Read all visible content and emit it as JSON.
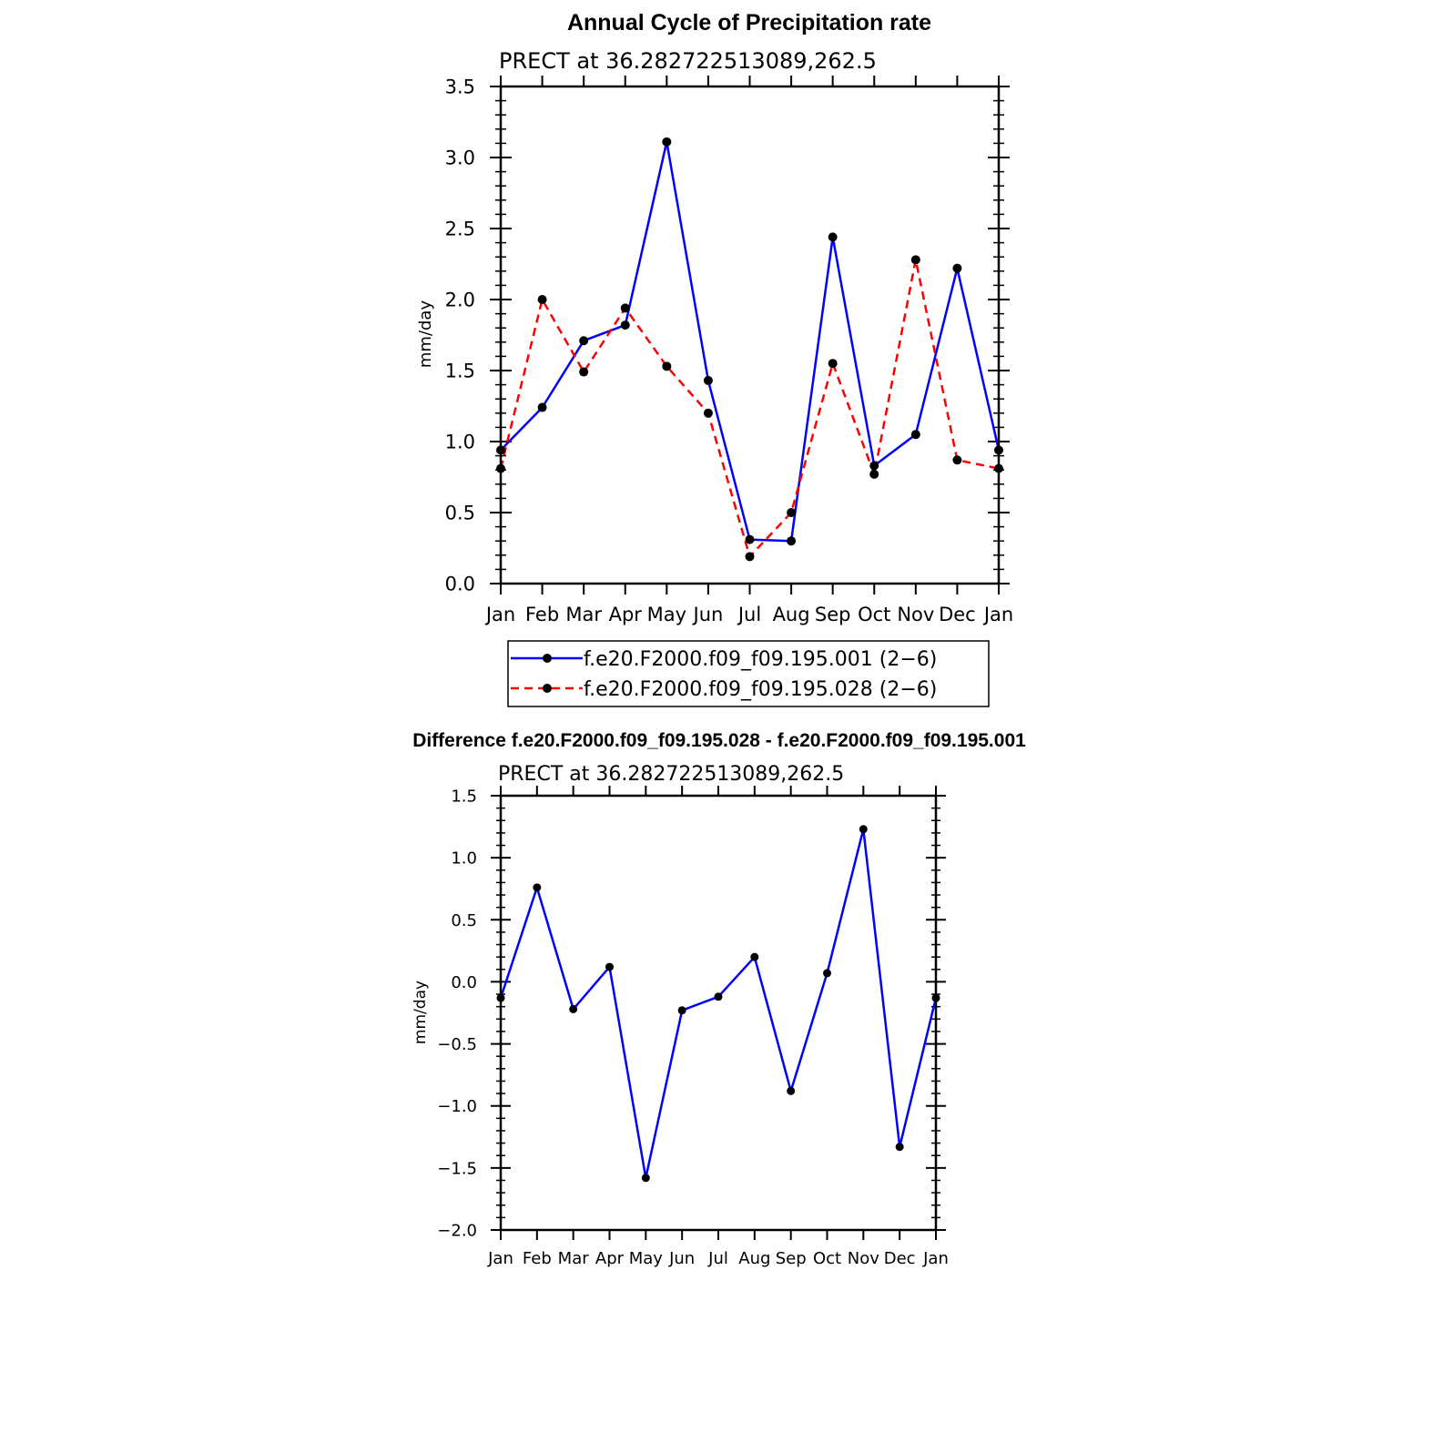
{
  "chart_data": [
    {
      "type": "line",
      "title": "Annual Cycle of Precipitation rate",
      "subtitle": "PRECT at 36.282722513089,262.5",
      "xlabel": "",
      "ylabel": "mm/day",
      "categories": [
        "Jan",
        "Feb",
        "Mar",
        "Apr",
        "May",
        "Jun",
        "Jul",
        "Aug",
        "Sep",
        "Oct",
        "Nov",
        "Dec",
        "Jan"
      ],
      "ylim": [
        0.0,
        3.5
      ],
      "yticks": [
        "0.0",
        "0.5",
        "1.0",
        "1.5",
        "2.0",
        "2.5",
        "3.0",
        "3.5"
      ],
      "grid": false,
      "legend_position": "bottom",
      "series": [
        {
          "name": "f.e20.F2000.f09_f09.195.001 (2−6)",
          "color": "#0000ff",
          "style": "solid",
          "values": [
            0.94,
            1.24,
            1.71,
            1.82,
            3.11,
            1.43,
            0.31,
            0.3,
            2.44,
            0.83,
            1.05,
            2.22,
            0.94
          ]
        },
        {
          "name": "f.e20.F2000.f09_f09.195.028 (2−6)",
          "color": "#ff0000",
          "style": "dashed",
          "values": [
            0.81,
            2.0,
            1.49,
            1.94,
            1.53,
            1.2,
            0.19,
            0.5,
            1.55,
            0.77,
            2.28,
            0.87,
            0.81
          ]
        }
      ]
    },
    {
      "type": "line",
      "title": "Difference f.e20.F2000.f09_f09.195.028 - f.e20.F2000.f09_f09.195.001",
      "subtitle": "PRECT at 36.282722513089,262.5",
      "xlabel": "",
      "ylabel": "mm/day",
      "categories": [
        "Jan",
        "Feb",
        "Mar",
        "Apr",
        "May",
        "Jun",
        "Jul",
        "Aug",
        "Sep",
        "Oct",
        "Nov",
        "Dec",
        "Jan"
      ],
      "ylim": [
        -2.0,
        1.5
      ],
      "yticks": [
        "−2.0",
        "−1.5",
        "−1.0",
        "−0.5",
        "0.0",
        "0.5",
        "1.0",
        "1.5"
      ],
      "grid": false,
      "series": [
        {
          "name": "Difference",
          "color": "#0000ff",
          "style": "solid",
          "values": [
            -0.13,
            0.76,
            -0.22,
            0.12,
            -1.58,
            -0.23,
            -0.12,
            0.2,
            -0.88,
            0.07,
            1.23,
            -1.33,
            -0.13
          ]
        }
      ]
    }
  ]
}
